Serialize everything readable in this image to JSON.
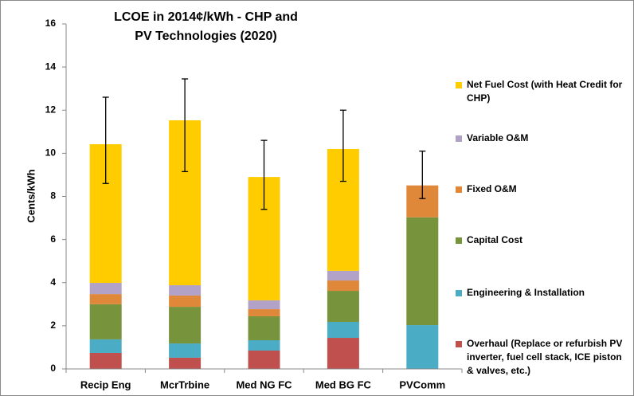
{
  "chart_data": {
    "type": "stacked_bar",
    "title": "LCOE in 2014¢/kWh - CHP and PV Technologies (2020)",
    "y_label": "Cents/kWh",
    "categories": [
      "Recip Eng",
      "McrTrbine",
      "Med NG FC",
      "Med BG FC",
      "PVComm"
    ],
    "series": [
      {
        "name": "Overhaul (Replace or refurbish PV inverter, fuel cell stack, ICE piston & valves, etc.)",
        "color": "#c0504d",
        "values": [
          0.74,
          0.52,
          0.85,
          1.44,
          0
        ]
      },
      {
        "name": "Engineering & Installation",
        "color": "#4bacc6",
        "values": [
          0.63,
          0.66,
          0.48,
          0.74,
          2.03
        ]
      },
      {
        "name": "Capital Cost",
        "color": "#77933c",
        "values": [
          1.63,
          1.7,
          1.11,
          1.44,
          5.0
        ]
      },
      {
        "name": "Fixed O&M",
        "color": "#e0883a",
        "values": [
          0.47,
          0.52,
          0.33,
          0.48,
          1.48
        ]
      },
      {
        "name": "Variable O&M",
        "color": "#b3a2c7",
        "values": [
          0.52,
          0.48,
          0.41,
          0.45,
          0
        ]
      },
      {
        "name": "Net Fuel Cost (with Heat Credit for CHP)",
        "color": "#ffcc00",
        "values": [
          6.43,
          7.65,
          5.72,
          5.65,
          0
        ]
      }
    ],
    "error_bars": {
      "low": [
        8.6,
        9.15,
        7.4,
        8.7,
        7.9
      ],
      "high": [
        12.6,
        13.45,
        10.6,
        12.0,
        10.1
      ]
    },
    "ylim": [
      0,
      16
    ],
    "yticks": [
      0,
      2,
      4,
      6,
      8,
      10,
      12,
      14,
      16
    ],
    "grid": false
  }
}
